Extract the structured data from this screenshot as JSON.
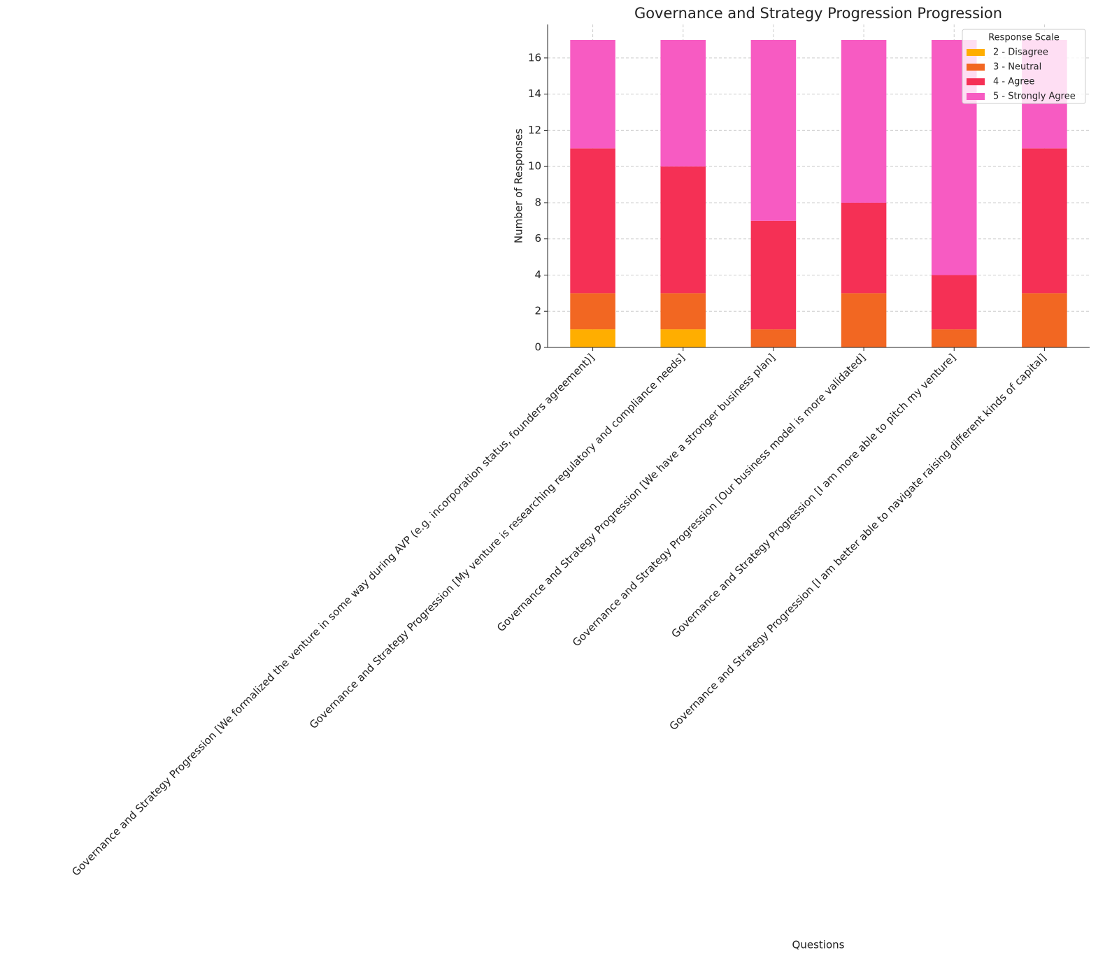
{
  "chart_data": {
    "type": "stacked_bar",
    "title": "Governance and Strategy Progression Progression",
    "x_label": "Questions",
    "y_label": "Number of Responses",
    "legend_title": "Response Scale",
    "legend_position": "upper right",
    "grid": true,
    "categories": [
      "Governance and Strategy Progression [We formalized the venture in some way during AVP (e.g. incorporation status, founders agreement)]",
      "Governance and Strategy Progression [My venture is researching regulatory and compliance needs]",
      "Governance and Strategy Progression [We have a stronger business plan]",
      "Governance and Strategy Progression [Our business model is more validated]",
      "Governance and Strategy Progression [I am more able to pitch my venture]",
      "Governance and Strategy Progression [I am better able to navigate raising different kinds of capital]"
    ],
    "series": [
      {
        "name": "2 - Disagree",
        "color": "#ffae00",
        "values": [
          1,
          1,
          0,
          0,
          0,
          0
        ]
      },
      {
        "name": "3 - Neutral",
        "color": "#f26722",
        "values": [
          2,
          2,
          1,
          3,
          1,
          3
        ]
      },
      {
        "name": "4 - Agree",
        "color": "#f53055",
        "values": [
          8,
          7,
          6,
          5,
          3,
          8
        ]
      },
      {
        "name": "5 - Strongly Agree",
        "color": "#f75bc2",
        "values": [
          6,
          7,
          10,
          9,
          13,
          6
        ]
      }
    ],
    "ylim": [
      0,
      17.85
    ],
    "yticks": [
      0,
      2,
      4,
      6,
      8,
      10,
      12,
      14,
      16
    ]
  }
}
